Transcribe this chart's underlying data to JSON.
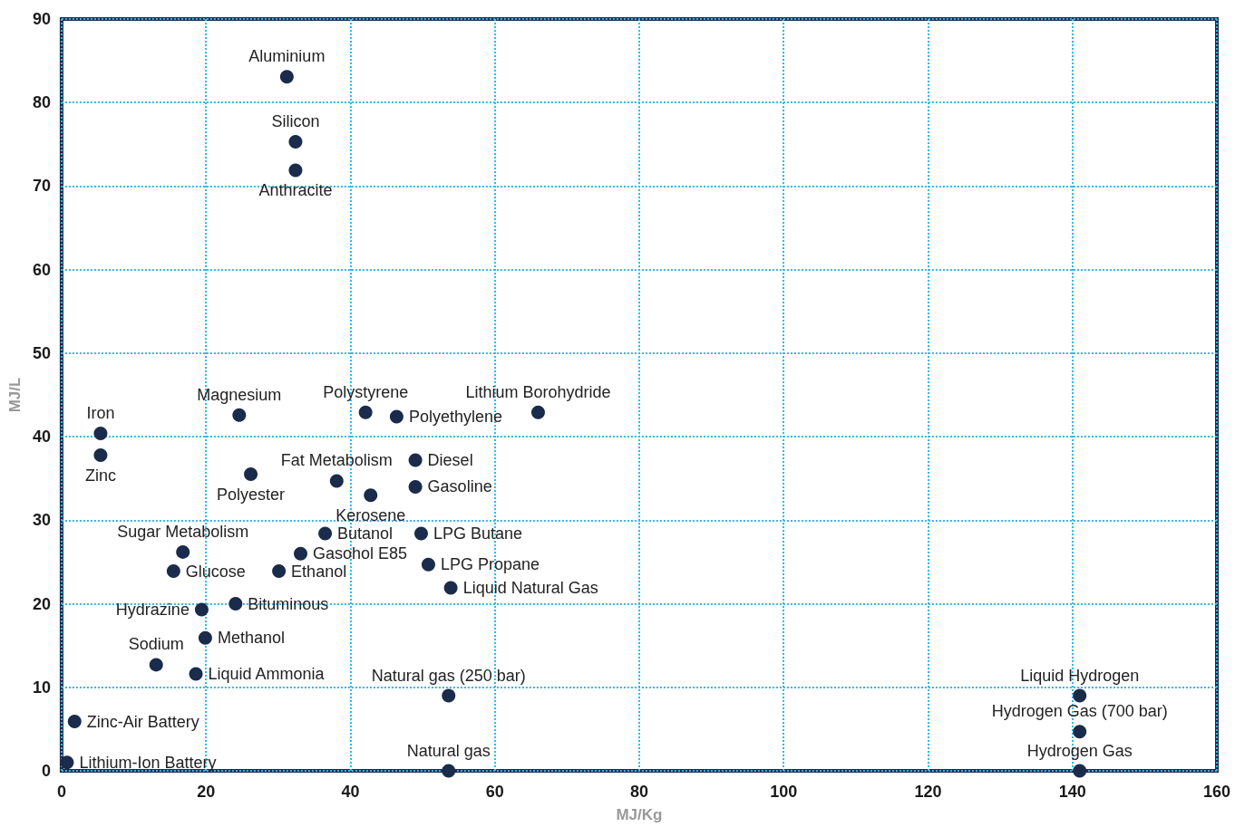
{
  "chart_data": {
    "type": "scatter",
    "xlabel": "MJ/Kg",
    "ylabel": "MJ/L",
    "x": [
      31.2,
      32.4,
      32.4,
      24.6,
      42.1,
      46.4,
      66,
      5.4,
      5.4,
      38.1,
      49,
      49,
      26.2,
      42.8,
      36.5,
      49.8,
      16.8,
      33.1,
      15.5,
      30.1,
      50.8,
      53.9,
      24.1,
      19.4,
      19.9,
      13.1,
      18.6,
      53.6,
      1.8,
      0.75,
      53.6,
      141,
      141,
      141
    ],
    "values": [
      83.1,
      75.3,
      71.9,
      42.6,
      42.9,
      42.4,
      42.9,
      40.4,
      37.8,
      34.7,
      37.2,
      34.0,
      35.5,
      33.0,
      28.4,
      28.4,
      26.2,
      26.0,
      23.9,
      23.9,
      24.7,
      21.9,
      20.0,
      19.3,
      15.9,
      12.7,
      11.6,
      9.0,
      5.9,
      1.0,
      0.0,
      9.0,
      4.7,
      0.0
    ],
    "color": "#1a2b4c",
    "marker": "circle",
    "annotations": [
      {
        "text": "Aluminium",
        "x": 31.2,
        "y": 83.1
      },
      {
        "text": "Silicon",
        "x": 32.4,
        "y": 75.3
      },
      {
        "text": "Anthracite",
        "x": 32.4,
        "y": 71.9
      },
      {
        "text": "Magnesium",
        "x": 24.6,
        "y": 42.6
      },
      {
        "text": "Polystyrene",
        "x": 42.1,
        "y": 42.9
      },
      {
        "text": "Polyethylene",
        "x": 46.4,
        "y": 42.4
      },
      {
        "text": "Lithium Borohydride",
        "x": 66,
        "y": 42.9
      },
      {
        "text": "Iron",
        "x": 5.4,
        "y": 40.4
      },
      {
        "text": "Zinc",
        "x": 5.4,
        "y": 37.8
      },
      {
        "text": "Fat Metabolism",
        "x": 38.1,
        "y": 34.7
      },
      {
        "text": "Diesel",
        "x": 49,
        "y": 37.2
      },
      {
        "text": "Gasoline",
        "x": 49,
        "y": 34.0
      },
      {
        "text": "Polyester",
        "x": 26.2,
        "y": 35.5
      },
      {
        "text": "Kerosene",
        "x": 42.8,
        "y": 33.0
      },
      {
        "text": "Butanol",
        "x": 36.5,
        "y": 28.4
      },
      {
        "text": "LPG Butane",
        "x": 49.8,
        "y": 28.4
      },
      {
        "text": "Sugar Metabolism",
        "x": 16.8,
        "y": 26.2
      },
      {
        "text": "Gasohol E85",
        "x": 33.1,
        "y": 26.0
      },
      {
        "text": "Glucose",
        "x": 15.5,
        "y": 23.9
      },
      {
        "text": "Ethanol",
        "x": 30.1,
        "y": 23.9
      },
      {
        "text": "LPG Propane",
        "x": 50.8,
        "y": 24.7
      },
      {
        "text": "Liquid Natural Gas",
        "x": 53.9,
        "y": 21.9
      },
      {
        "text": "Bituminous",
        "x": 24.1,
        "y": 20.0
      },
      {
        "text": "Hydrazine",
        "x": 19.4,
        "y": 19.3
      },
      {
        "text": "Methanol",
        "x": 19.9,
        "y": 15.9
      },
      {
        "text": "Sodium",
        "x": 13.1,
        "y": 12.7
      },
      {
        "text": "Liquid Ammonia",
        "x": 18.6,
        "y": 11.6
      },
      {
        "text": "Natural gas (250 bar)",
        "x": 53.6,
        "y": 9.0
      },
      {
        "text": "Zinc-Air Battery",
        "x": 1.8,
        "y": 5.9
      },
      {
        "text": "Lithium-Ion Battery",
        "x": 0.75,
        "y": 1.0
      },
      {
        "text": "Natural gas",
        "x": 53.6,
        "y": 0.0
      },
      {
        "text": "Liquid Hydrogen",
        "x": 141,
        "y": 9.0
      },
      {
        "text": "Hydrogen Gas (700 bar)",
        "x": 141,
        "y": 4.7
      },
      {
        "text": "Hydrogen Gas",
        "x": 141,
        "y": 0.0
      }
    ],
    "xlim": [
      0,
      160
    ],
    "xticks": [
      0,
      20,
      40,
      60,
      80,
      100,
      120,
      140,
      160
    ],
    "ylim": [
      0,
      90
    ],
    "yticks": [
      0,
      10,
      20,
      30,
      40,
      50,
      60,
      70,
      80,
      90
    ],
    "grid": true
  }
}
